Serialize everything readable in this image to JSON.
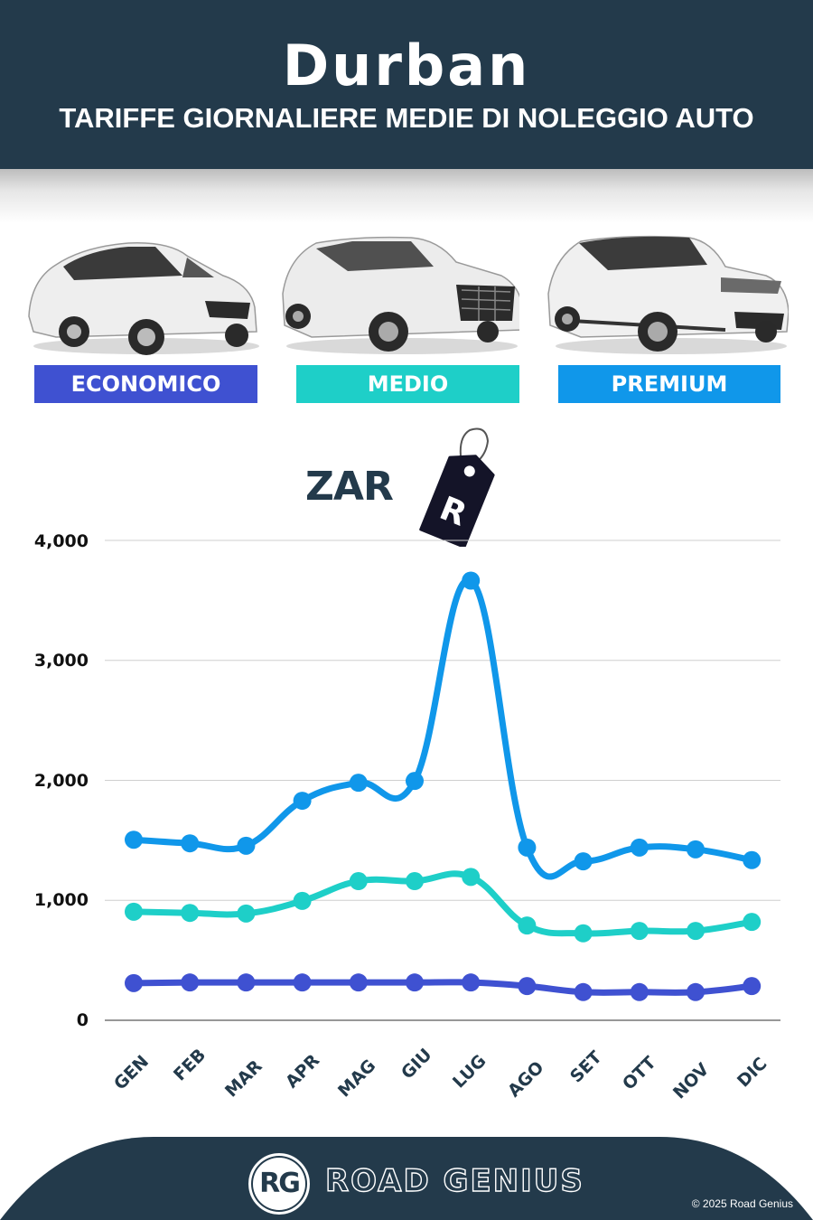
{
  "header": {
    "city": "Durban",
    "subtitle": "TARIFFE GIORNALIERE MEDIE DI NOLEGGIO AUTO"
  },
  "categories": [
    {
      "label": "ECONOMICO",
      "color": "#3f51d1",
      "car": "compact hatchback"
    },
    {
      "label": "MEDIO",
      "color": "#1ecfc8",
      "car": "mid-size SUV"
    },
    {
      "label": "PREMIUM",
      "color": "#1097ea",
      "car": "luxury SUV"
    }
  ],
  "currency": {
    "code": "ZAR",
    "symbol": "R",
    "icon": "price-tag-icon"
  },
  "chart_data": {
    "type": "line",
    "title": "Durban — Tariffe giornaliere medie di noleggio auto",
    "xlabel": "",
    "ylabel": "ZAR",
    "categories": [
      "GEN",
      "FEB",
      "MAR",
      "APR",
      "MAG",
      "GIU",
      "LUG",
      "AGO",
      "SET",
      "OTT",
      "NOV",
      "DIC"
    ],
    "series": [
      {
        "name": "ECONOMICO",
        "color": "#3f51d1",
        "values": [
          310,
          315,
          315,
          315,
          315,
          315,
          315,
          285,
          235,
          235,
          235,
          285
        ]
      },
      {
        "name": "MEDIO",
        "color": "#1ecfc8",
        "values": [
          905,
          895,
          890,
          995,
          1160,
          1160,
          1195,
          790,
          725,
          745,
          745,
          820
        ]
      },
      {
        "name": "PREMIUM",
        "color": "#1097ea",
        "values": [
          1505,
          1475,
          1455,
          1830,
          1980,
          1995,
          3665,
          1440,
          1325,
          1440,
          1425,
          1335
        ]
      }
    ],
    "yticks": [
      0,
      1000,
      2000,
      3000,
      4000
    ],
    "ytick_labels": [
      "0",
      "1,000",
      "2,000",
      "3,000",
      "4,000"
    ],
    "ylim": [
      0,
      4000
    ],
    "grid": true,
    "smooth": true,
    "legend": "category badges above chart"
  },
  "footer": {
    "logo_initials": "RG",
    "brand": "ROAD GENIUS",
    "copyright": "© 2025 Road Genius"
  }
}
